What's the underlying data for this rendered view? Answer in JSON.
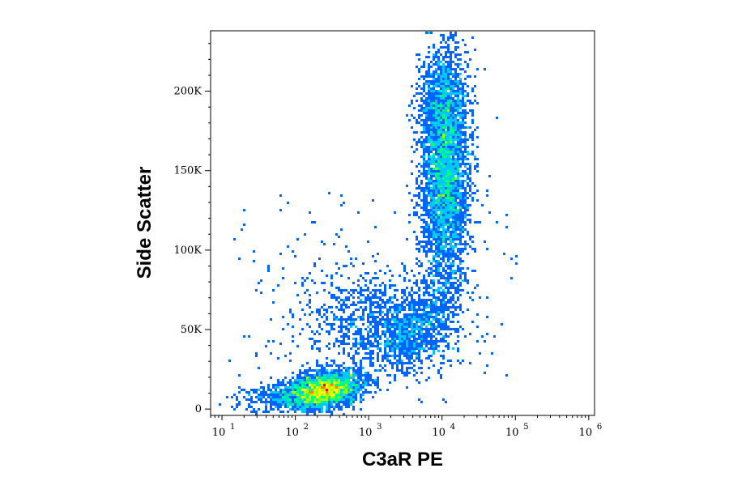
{
  "chart_data": {
    "type": "scatter",
    "subtype": "flow-cytometry density dot plot",
    "xlabel": "C3aR PE",
    "ylabel": "Side Scatter",
    "x_scale": "log",
    "xlim": [
      7,
      1200000
    ],
    "ylim": [
      -4000,
      238000
    ],
    "x_ticks": [
      {
        "base": "10",
        "exp": "1",
        "value": 10
      },
      {
        "base": "10",
        "exp": "2",
        "value": 100
      },
      {
        "base": "10",
        "exp": "3",
        "value": 1000
      },
      {
        "base": "10",
        "exp": "4",
        "value": 10000
      },
      {
        "base": "10",
        "exp": "5",
        "value": 100000
      },
      {
        "base": "10",
        "exp": "6",
        "value": 1000000
      }
    ],
    "y_ticks": [
      {
        "label": "0",
        "value": 0
      },
      {
        "label": "50K",
        "value": 50000
      },
      {
        "label": "100K",
        "value": 100000
      },
      {
        "label": "150K",
        "value": 150000
      },
      {
        "label": "200K",
        "value": 200000
      }
    ],
    "grid": false,
    "legend": "none",
    "populations": [
      {
        "center_x": 250,
        "center_y": 12000,
        "density": "highest"
      },
      {
        "center_x": 1000,
        "center_y": 58000,
        "density": "low"
      },
      {
        "center_x": 11000,
        "center_y": 150000,
        "density": "high"
      }
    ],
    "colormap": [
      "#0000c8",
      "#0064ff",
      "#00c8ff",
      "#00ff80",
      "#a0ff00",
      "#ffff00",
      "#ff8000",
      "#ff0000"
    ]
  }
}
